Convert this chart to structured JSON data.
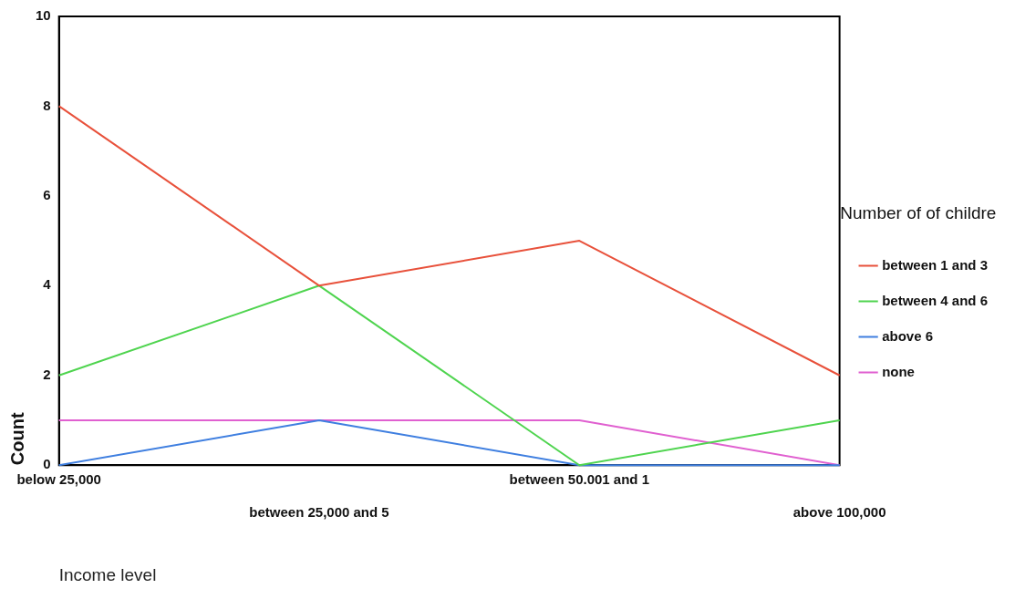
{
  "chart_data": {
    "type": "line",
    "xlabel": "Income level",
    "ylabel": "Count",
    "legend_title": "Number of of childre",
    "categories": [
      "below 25,000",
      "between 25,000 and 5",
      "between 50.001 and 1",
      "above 100,000"
    ],
    "series": [
      {
        "name": "between 1 and 3",
        "color": "#e8513b",
        "values": [
          8,
          4,
          5,
          2
        ]
      },
      {
        "name": "between 4 and 6",
        "color": "#4fd44f",
        "values": [
          2,
          4,
          0,
          1
        ]
      },
      {
        "name": "above 6",
        "color": "#3f7fe0",
        "values": [
          0,
          1,
          0,
          0
        ]
      },
      {
        "name": "none",
        "color": "#e060d0",
        "values": [
          1,
          1,
          1,
          0
        ]
      }
    ],
    "ylim": [
      0,
      10
    ],
    "yticks": [
      0,
      2,
      4,
      6,
      8,
      10
    ],
    "grid": false,
    "legend": "right",
    "marker": "none",
    "line_style": "solid"
  }
}
